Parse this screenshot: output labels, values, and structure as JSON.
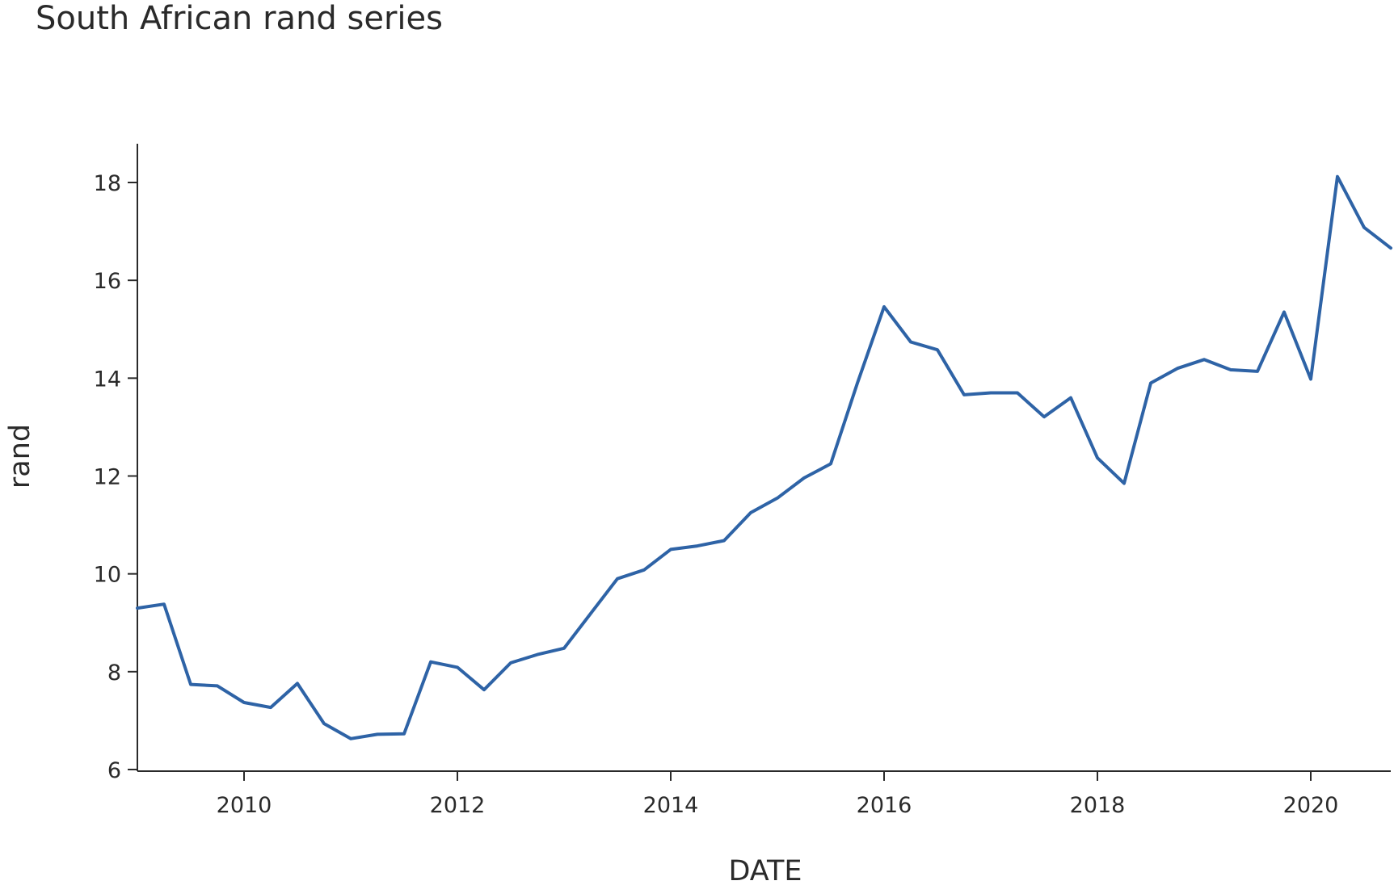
{
  "chart_data": {
    "type": "line",
    "title": "South African rand series",
    "xlabel": "DATE",
    "ylabel": "rand",
    "x_ticks": [
      "2010",
      "2012",
      "2014",
      "2016",
      "2018",
      "2020"
    ],
    "y_ticks": [
      "6",
      "8",
      "10",
      "12",
      "14",
      "16",
      "18"
    ],
    "ylim": [
      6,
      18.8
    ],
    "xlim": [
      "2009-01-01",
      "2020-10-01"
    ],
    "grid": false,
    "line_color": "#2e63a6",
    "series": [
      {
        "x": [
          "2009-01-01",
          "2009-04-01",
          "2009-07-01",
          "2009-10-01",
          "2010-01-01",
          "2010-04-01",
          "2010-07-01",
          "2010-10-01",
          "2011-01-01",
          "2011-04-01",
          "2011-07-01",
          "2011-10-01",
          "2012-01-01",
          "2012-04-01",
          "2012-07-01",
          "2012-10-01",
          "2013-01-01",
          "2013-04-01",
          "2013-07-01",
          "2013-10-01",
          "2014-01-01",
          "2014-04-01",
          "2014-07-01",
          "2014-10-01",
          "2015-01-01",
          "2015-04-01",
          "2015-07-01",
          "2015-10-01",
          "2016-01-01",
          "2016-04-01",
          "2016-07-01",
          "2016-10-01",
          "2017-01-01",
          "2017-04-01",
          "2017-07-01",
          "2017-10-01",
          "2018-01-01",
          "2018-04-01",
          "2018-07-01",
          "2018-10-01",
          "2019-01-01",
          "2019-04-01",
          "2019-07-01",
          "2019-10-01",
          "2020-01-01",
          "2020-04-01",
          "2020-07-01",
          "2020-10-01"
        ],
        "values": [
          9.3,
          9.38,
          7.74,
          7.71,
          7.37,
          7.27,
          7.76,
          6.94,
          6.63,
          6.72,
          6.73,
          8.2,
          8.09,
          7.63,
          8.18,
          8.35,
          8.48,
          9.19,
          9.9,
          10.08,
          10.5,
          10.57,
          10.68,
          11.25,
          11.55,
          11.96,
          12.25,
          13.9,
          15.46,
          14.74,
          14.58,
          13.66,
          13.7,
          13.7,
          13.21,
          13.6,
          12.37,
          11.85,
          13.9,
          14.2,
          14.38,
          14.17,
          14.14,
          15.35,
          13.98,
          18.12,
          17.08,
          16.66
        ]
      }
    ]
  }
}
